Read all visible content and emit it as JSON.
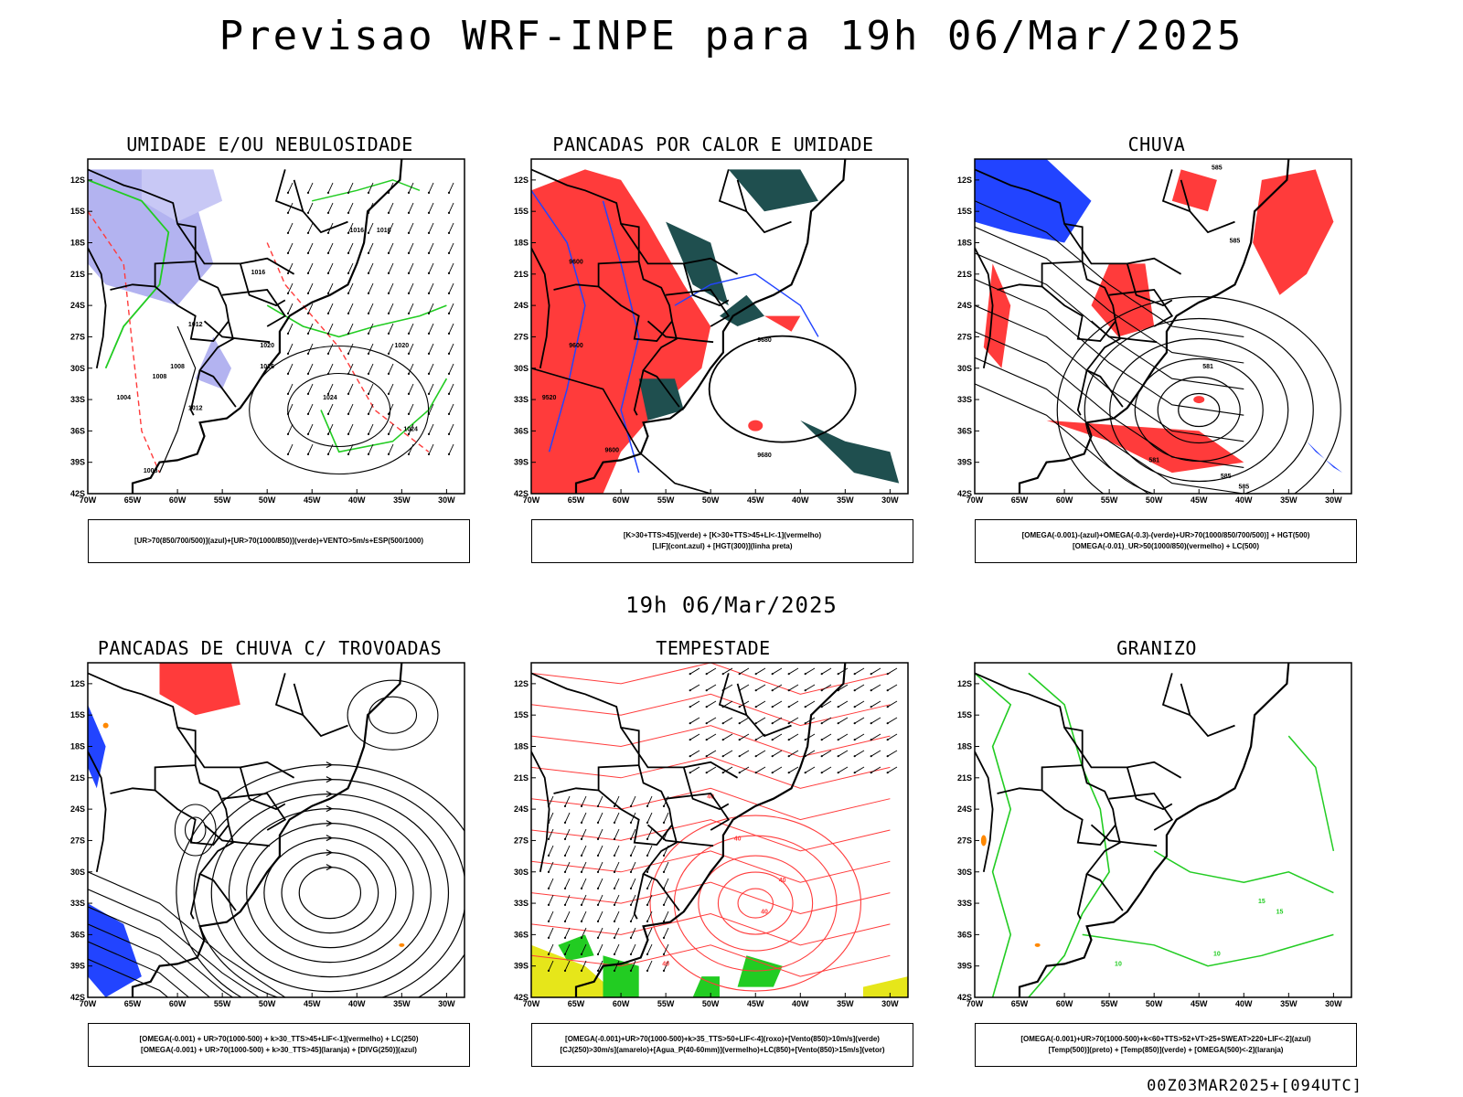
{
  "title": "Previsao WRF-INPE  para 19h 06/Mar/2025",
  "subtitle": "19h 06/Mar/2025",
  "footer": "00Z03MAR2025+[094UTC]",
  "axes": {
    "lat_labels": [
      "12S",
      "15S",
      "18S",
      "21S",
      "24S",
      "27S",
      "30S",
      "33S",
      "36S",
      "39S",
      "42S"
    ],
    "lon_labels": [
      "70W",
      "65W",
      "60W",
      "55W",
      "50W",
      "45W",
      "40W",
      "35W",
      "30W"
    ]
  },
  "colors": {
    "red": "#ff3b3b",
    "blue": "#2244ff",
    "green": "#22cc22",
    "lavender": "#b3b3f0",
    "dark_teal": "#1f4f4f",
    "yellow": "#e6e61a",
    "orange": "#ff8800"
  },
  "panels": [
    {
      "id": "umidade",
      "title": "UMIDADE E/OU NEBULOSIDADE",
      "legend": [
        "[UR>70(850/700/500)](azul)+[UR>70(1000/850)](verde)+VENTO>5m/s+ESP(500/1000)"
      ],
      "contour_labels": [
        "1016",
        "1016",
        "1020",
        "1024",
        "1024",
        "1012",
        "1008",
        "1016",
        "1020",
        "1016",
        "1012",
        "1008",
        "1004",
        "1008"
      ]
    },
    {
      "id": "pancadas-calor",
      "title": "PANCADAS POR CALOR E UMIDADE",
      "legend": [
        "[K>30+TTS>45](verde)  +  [K>30+TTS>45+LI<-1](vermelho)",
        "[LIF](cont.azul)  +  [HGT(300)](linha preta)"
      ],
      "contour_labels": [
        "9680",
        "9680",
        "9600",
        "9600",
        "9600",
        "9520"
      ]
    },
    {
      "id": "chuva",
      "title": "CHUVA",
      "legend": [
        "[OMEGA(-0.001)-(azul)+OMEGA(-0.3)-(verde)+UR>70(1000/850/700/500)]  +  HGT(500)",
        "[OMEGA(-0.01)_UR>50(1000/850)(vermelho)  +  LC(500)"
      ],
      "contour_labels": [
        "585",
        "585",
        "581",
        "581",
        "585",
        "585"
      ]
    },
    {
      "id": "trovoadas",
      "title": "PANCADAS DE CHUVA C/ TROVOADAS",
      "legend": [
        "[OMEGA(-0.001)  +  UR>70(1000-500)  +  k>30_TTS>45+LIF<-1](vermelho)  +  LC(250)",
        "[OMEGA(-0.001)  +  UR>70(1000-500)  +  k>30_TTS>45](laranja)  +  [DIVG(250)](azul)"
      ],
      "contour_labels": []
    },
    {
      "id": "tempestade",
      "title": "TEMPESTADE",
      "legend": [
        "[OMEGA(-0.001)+UR>70(1000-500)+k>35_TTS>50+LIF<-4](roxo)+[Vento(850)>10m/s](verde)",
        "[CJ(250)>30m/s](amarelo)+[Agua_P(40-60mm)](vermelho)+LC(850)+[Vento(850)>15m/s](vetor)"
      ],
      "contour_labels": [
        "40",
        "40",
        "40",
        "40",
        "40"
      ]
    },
    {
      "id": "granizo",
      "title": "GRANIZO",
      "legend": [
        "[OMEGA(-0.001)+UR>70(1000-500)+k<60+TTS>52+VT>25+SWEAT>220+LIF<-2](azul)",
        "[Temp(500)](preto)  +  [Temp(850)](verde)  +  [OMEGA(500)<-2](laranja)"
      ],
      "contour_labels": [
        "10",
        "10",
        "15",
        "15"
      ]
    }
  ]
}
